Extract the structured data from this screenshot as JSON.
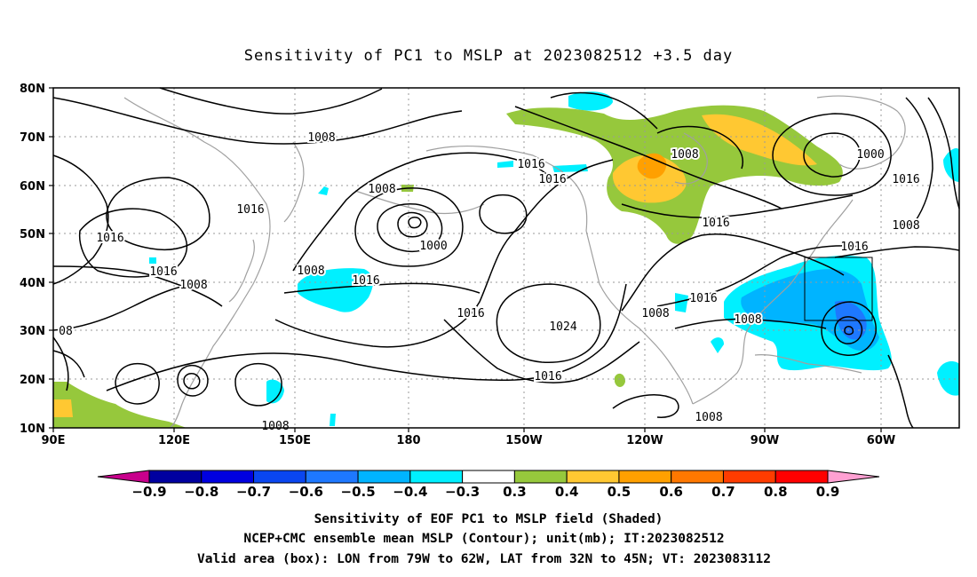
{
  "title": "Sensitivity of PC1 to MSLP at 2023082512 +3.5 day",
  "axes": {
    "lat_labels": [
      "80N",
      "70N",
      "60N",
      "50N",
      "40N",
      "30N",
      "20N",
      "10N"
    ],
    "lon_labels": [
      "90E",
      "120E",
      "150E",
      "180",
      "150W",
      "120W",
      "90W",
      "60W"
    ]
  },
  "contours": {
    "variable": "NCEP+CMC ensemble mean MSLP",
    "unit": "mb",
    "labels": [
      "1008",
      "1016",
      "1008",
      "1016",
      "1016",
      "1016",
      "1000",
      "1008",
      "1016",
      "1016",
      "1016",
      "1008",
      "1008",
      "1016",
      "1024",
      "1016",
      "1016",
      "1008",
      "1008",
      "1008",
      "1008",
      "1016",
      "1008",
      "1000",
      "1016",
      "1008",
      "08"
    ]
  },
  "valid_box": {
    "lon_from": "79W",
    "lon_to": "62W",
    "lat_from": "32N",
    "lat_to": "45N"
  },
  "colorbar": {
    "colors": [
      "#c8008c",
      "#0000a0",
      "#0000e0",
      "#0a46f0",
      "#1e78ff",
      "#00b4ff",
      "#00f0ff",
      "#ffffff",
      "#96c83c",
      "#ffc832",
      "#ffa000",
      "#ff7800",
      "#ff3c00",
      "#ff0000",
      "#ffa0d2"
    ],
    "labels": [
      "−0.9",
      "−0.8",
      "−0.7",
      "−0.6",
      "−0.5",
      "−0.4",
      "−0.3",
      "0.3",
      "0.4",
      "0.5",
      "0.6",
      "0.7",
      "0.8",
      "0.9"
    ]
  },
  "shading_colors": {
    "cyan": "#00f0ff",
    "lightblue": "#00b4ff",
    "blue": "#1e78ff",
    "green": "#96c83c",
    "yellow": "#ffc832",
    "orange": "#ffa000"
  },
  "caption": {
    "line1": "Sensitivity of EOF PC1 to MSLP field (Shaded)",
    "line2": "NCEP+CMC ensemble mean MSLP (Contour); unit(mb); IT:2023082512",
    "line3": "Valid area (box): LON from 79W to 62W, LAT from 32N to 45N; VT: 2023083112"
  }
}
